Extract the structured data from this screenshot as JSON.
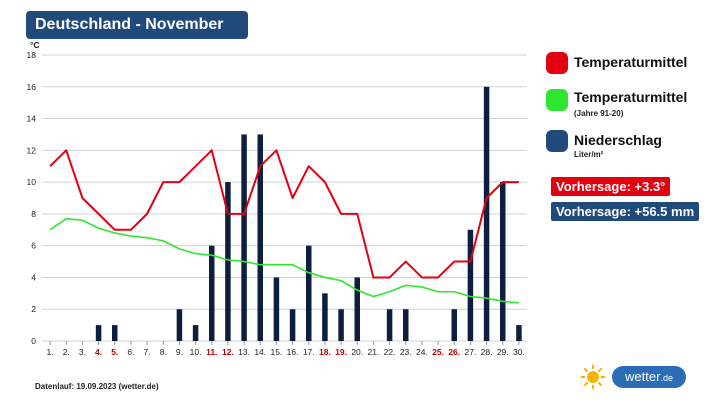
{
  "header": {
    "title": "Deutschland - November"
  },
  "chart_data": {
    "type": "bar+line",
    "categories": [
      "1.",
      "2.",
      "3.",
      "4.",
      "5.",
      "6.",
      "7.",
      "8.",
      "9.",
      "10.",
      "11.",
      "12.",
      "13.",
      "14.",
      "15.",
      "16.",
      "17.",
      "18.",
      "19.",
      "20.",
      "21.",
      "22.",
      "23.",
      "24.",
      "25.",
      "26.",
      "27.",
      "28.",
      "29.",
      "30."
    ],
    "weekend_days": [
      "4.",
      "5.",
      "11.",
      "12.",
      "18.",
      "19.",
      "25.",
      "26."
    ],
    "ylabel": "°C",
    "ylim": [
      0,
      18
    ],
    "yticks": [
      0,
      2,
      4,
      6,
      8,
      10,
      12,
      14,
      16,
      18
    ],
    "series": [
      {
        "name": "Temperaturmittel",
        "type": "line",
        "color": "#e3000f",
        "values": [
          11,
          12,
          9,
          8,
          7,
          7,
          8,
          10,
          10,
          11,
          12,
          8,
          8,
          11,
          12,
          9,
          11,
          10,
          8,
          8,
          4,
          4,
          5,
          4,
          4,
          5,
          5,
          9,
          10,
          10
        ]
      },
      {
        "name": "Temperaturmittel",
        "type": "line",
        "color": "#2ee62e",
        "values": [
          7.0,
          7.7,
          7.6,
          7.1,
          6.8,
          6.6,
          6.5,
          6.3,
          5.8,
          5.5,
          5.4,
          5.1,
          5.0,
          4.8,
          4.8,
          4.8,
          4.3,
          4.0,
          3.8,
          3.2,
          2.8,
          3.1,
          3.5,
          3.4,
          3.1,
          3.1,
          2.8,
          2.7,
          2.5,
          2.4
        ]
      },
      {
        "name": "Niederschlag",
        "type": "bar",
        "color": "#0e1e3e",
        "values": [
          0,
          0,
          0,
          1,
          1,
          0,
          0,
          0,
          2,
          1,
          6,
          10,
          13,
          13,
          4,
          2,
          6,
          3,
          2,
          4,
          0,
          2,
          2,
          0,
          0,
          2,
          7,
          16,
          10,
          1
        ]
      }
    ]
  },
  "legend": {
    "items": [
      {
        "label": "Temperaturmittel",
        "sub": "",
        "color": "#e3000f"
      },
      {
        "label": "Temperaturmittel",
        "sub": "(Jahre 91-20)",
        "color": "#2ee62e"
      },
      {
        "label": "Niederschlag",
        "sub": "Liter/m²",
        "color": "#20497c"
      }
    ]
  },
  "forecast": {
    "temp": {
      "text": "Vorhersage: +3.3°",
      "color": "#e3000f"
    },
    "rain": {
      "text": "Vorhersage: +56.5 mm",
      "color": "#20497c"
    }
  },
  "footer": {
    "text": "Datenlauf: 19.09.2023 (wetter.de)"
  },
  "brand": {
    "name": "wetter",
    "domain": ".de"
  }
}
